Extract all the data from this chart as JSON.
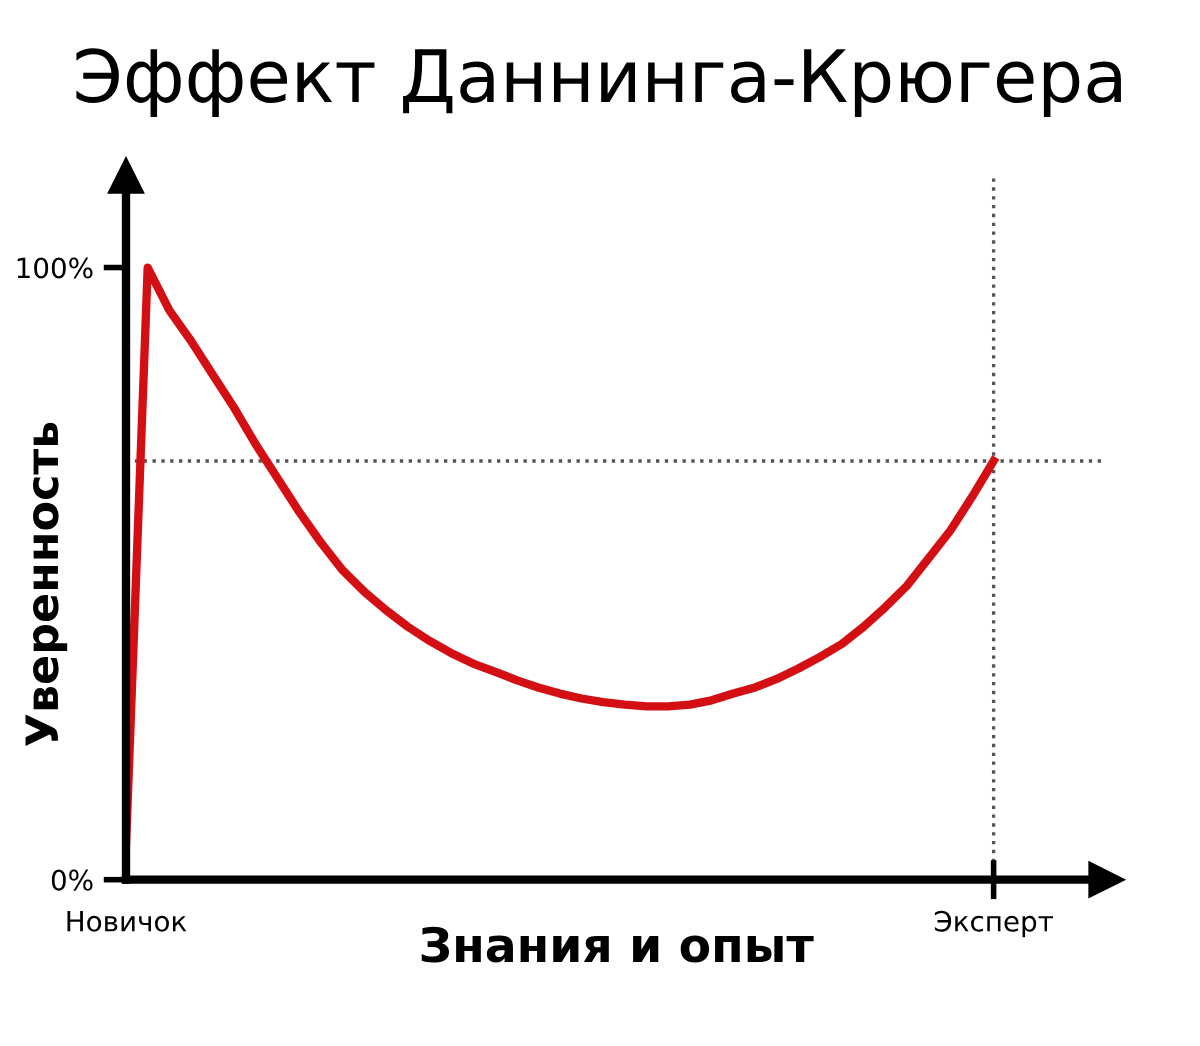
{
  "chart_data": {
    "type": "line",
    "title": "Эффект Даннинга-Крюгера",
    "xlabel": "Знания и опыт",
    "ylabel": "Уверенность",
    "categories": [
      "Новичок",
      null,
      null,
      null,
      null,
      null,
      null,
      null,
      null,
      null,
      null,
      null,
      null,
      null,
      null,
      null,
      null,
      null,
      null,
      null,
      null,
      null,
      null,
      null,
      null,
      null,
      null,
      null,
      null,
      null,
      null,
      null,
      null,
      null,
      null,
      null,
      null,
      null,
      null,
      null,
      "Эксперт"
    ],
    "series": [
      {
        "color": "#d40f14",
        "values": [
          5.5,
          100,
          93,
          88,
          82.5,
          77,
          71,
          65.5,
          60,
          55,
          50.5,
          47,
          44,
          41.3,
          39,
          37,
          35.3,
          34,
          32.6,
          31.4,
          30.4,
          29.6,
          29,
          28.6,
          28.3,
          28.3,
          28.6,
          29.3,
          30.4,
          31.4,
          32.8,
          34.5,
          36.4,
          38.5,
          41.3,
          44.5,
          48,
          52.5,
          57,
          62.5,
          68.4
        ]
      }
    ],
    "ylim": [
      0,
      115
    ],
    "yticks": [
      {
        "value": 0,
        "label": "0%"
      },
      {
        "value": 100,
        "label": "100%"
      }
    ],
    "ref_lines": [
      {
        "axis": "y",
        "value": 68.4,
        "color": "#555555",
        "line_style": "dotted"
      },
      {
        "axis": "x",
        "value": "Эксперт",
        "color": "#555555",
        "line_style": "dotted"
      }
    ],
    "grid": false,
    "legend": false,
    "marker": "none",
    "line_style": "solid"
  }
}
